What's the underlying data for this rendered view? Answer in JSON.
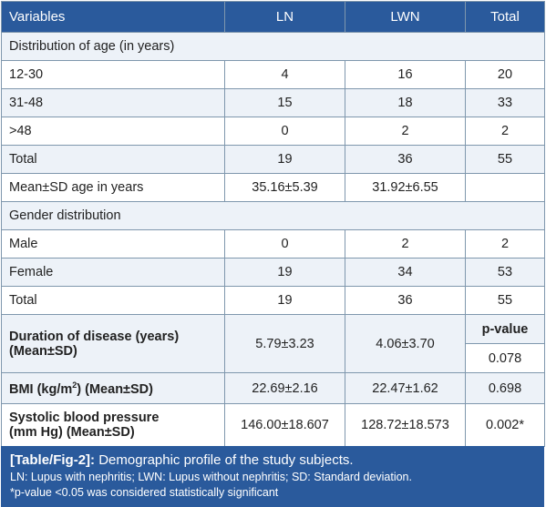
{
  "header": [
    "Variables",
    "LN",
    "LWN",
    "Total"
  ],
  "sections": {
    "age": "Distribution of age (in years)",
    "gender": "Gender distribution"
  },
  "age_rows": [
    {
      "label": "12-30",
      "ln": "4",
      "lwn": "16",
      "total": "20"
    },
    {
      "label": "31-48",
      "ln": "15",
      "lwn": "18",
      "total": "33"
    },
    {
      "label": ">48",
      "ln": "0",
      "lwn": "2",
      "total": "2"
    },
    {
      "label": "Total",
      "ln": "19",
      "lwn": "36",
      "total": "55"
    },
    {
      "label": "Mean±SD age in years",
      "ln": "35.16±5.39",
      "lwn": "31.92±6.55",
      "total": ""
    }
  ],
  "gender_rows": [
    {
      "label": "Male",
      "ln": "0",
      "lwn": "2",
      "total": "2"
    },
    {
      "label": "Female",
      "ln": "19",
      "lwn": "34",
      "total": "53"
    },
    {
      "label": "Total",
      "ln": "19",
      "lwn": "36",
      "total": "55"
    }
  ],
  "duration": {
    "label_line1": "Duration of disease (years)",
    "label_line2": "(Mean±SD)",
    "ln": "5.79±3.23",
    "lwn": "4.06±3.70",
    "pvalue_header": "p-value",
    "pvalue": "0.078"
  },
  "bmi": {
    "label_pre": "BMI (kg/m",
    "label_sup": "2",
    "label_post": ") (Mean±SD)",
    "ln": "22.69±2.16",
    "lwn": "22.47±1.62",
    "pvalue": "0.698"
  },
  "sbp": {
    "label_line1": "Systolic blood pressure",
    "label_line2": "(mm Hg) (Mean±SD)",
    "ln": "146.00±18.607",
    "lwn": "128.72±18.573",
    "pvalue": "0.002*"
  },
  "caption": {
    "ref": "[Table/Fig-2]:",
    "title": " Demographic profile of the study subjects.",
    "note1": "LN: Lupus with nephritis; LWN: Lupus without nephritis; SD: Standard deviation.",
    "note2": "*p-value <0.05 was considered statistically significant"
  },
  "colors": {
    "header_bg": "#2a5a9c",
    "stripe": "#edf2f8",
    "border": "#7f97ad"
  }
}
